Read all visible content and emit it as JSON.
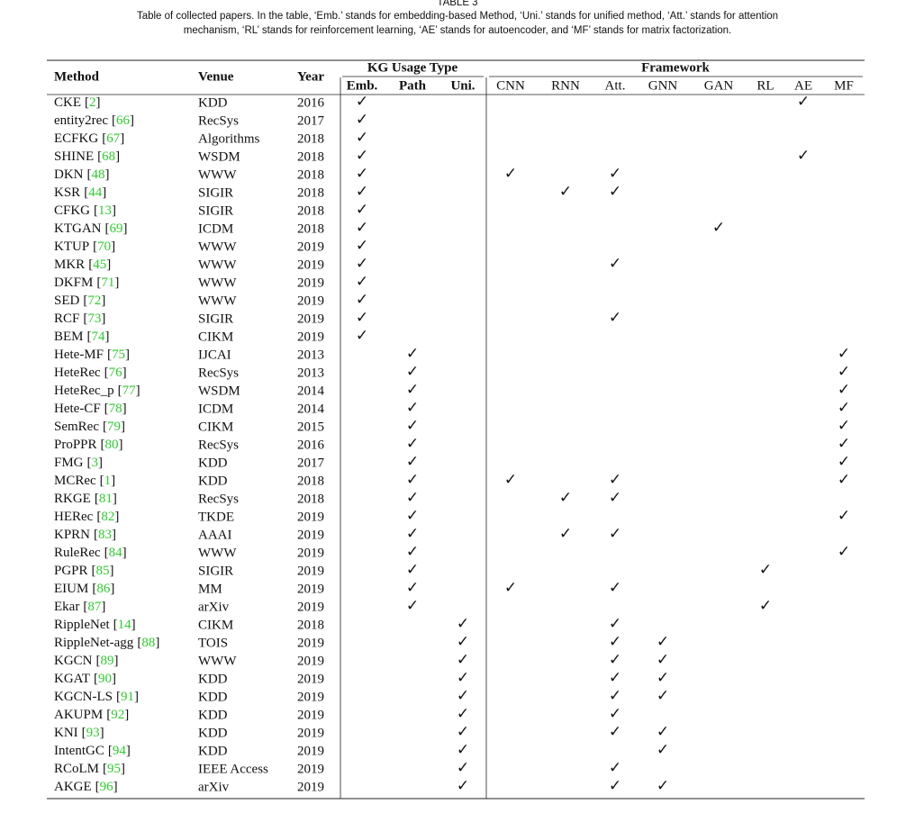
{
  "header": {
    "title": "TABLE 3",
    "caption": [
      "Table of collected papers. In the table, ‘Emb.’ stands for embedding-based Method, ‘Uni.’ stands for unified method, ‘Att.’ stands for attention",
      "mechanism, ‘RL’ stands for reinforcement learning, ‘AE’ stands for autoencoder, and ‘MF’ stands for matrix factorization."
    ]
  },
  "table": {
    "columns": {
      "method": "Method",
      "venue": "Venue",
      "year": "Year",
      "group1": "KG Usage Type",
      "group2": "Framework",
      "sub": [
        "Emb.",
        "Path",
        "Uni.",
        "CNN",
        "RNN",
        "Att.",
        "GNN",
        "GAN",
        "RL",
        "AE",
        "MF"
      ]
    },
    "rows": [
      {
        "method": "CKE",
        "ref": "[2]",
        "venue": "KDD",
        "year": 2016,
        "checks": [
          "✓",
          null,
          null,
          null,
          null,
          null,
          null,
          null,
          null,
          "✓",
          null
        ]
      },
      {
        "method": "entity2rec",
        "ref": "[66]",
        "venue": "RecSys",
        "year": 2017,
        "checks": [
          "✓",
          null,
          null,
          null,
          null,
          null,
          null,
          null,
          null,
          null,
          null
        ]
      },
      {
        "method": "ECFKG",
        "ref": "[67]",
        "venue": "Algorithms",
        "year": 2018,
        "checks": [
          "✓",
          null,
          null,
          null,
          null,
          null,
          null,
          null,
          null,
          null,
          null
        ]
      },
      {
        "method": "SHINE",
        "ref": "[68]",
        "venue": "WSDM",
        "year": 2018,
        "checks": [
          "✓",
          null,
          null,
          null,
          null,
          null,
          null,
          null,
          null,
          "✓",
          null
        ]
      },
      {
        "method": "DKN",
        "ref": "[48]",
        "venue": "WWW",
        "year": 2018,
        "checks": [
          "✓",
          null,
          null,
          "✓",
          null,
          "✓",
          null,
          null,
          null,
          null,
          null
        ]
      },
      {
        "method": "KSR",
        "ref": "[44]",
        "venue": "SIGIR",
        "year": 2018,
        "checks": [
          "✓",
          null,
          null,
          null,
          "✓",
          "✓",
          null,
          null,
          null,
          null,
          null
        ]
      },
      {
        "method": "CFKG",
        "ref": "[13]",
        "venue": "SIGIR",
        "year": 2018,
        "checks": [
          "✓",
          null,
          null,
          null,
          null,
          null,
          null,
          null,
          null,
          null,
          null
        ]
      },
      {
        "method": "KTGAN",
        "ref": "[69]",
        "venue": "ICDM",
        "year": 2018,
        "checks": [
          "✓",
          null,
          null,
          null,
          null,
          null,
          null,
          "✓",
          null,
          null,
          null
        ]
      },
      {
        "method": "KTUP",
        "ref": "[70]",
        "venue": "WWW",
        "year": 2019,
        "checks": [
          "✓",
          null,
          null,
          null,
          null,
          null,
          null,
          null,
          null,
          null,
          null
        ]
      },
      {
        "method": "MKR",
        "ref": "[45]",
        "venue": "WWW",
        "year": 2019,
        "checks": [
          "✓",
          null,
          null,
          null,
          null,
          "✓",
          null,
          null,
          null,
          null,
          null
        ]
      },
      {
        "method": "DKFM",
        "ref": "[71]",
        "venue": "WWW",
        "year": 2019,
        "checks": [
          "✓",
          null,
          null,
          null,
          null,
          null,
          null,
          null,
          null,
          null,
          null
        ]
      },
      {
        "method": "SED",
        "ref": "[72]",
        "venue": "WWW",
        "year": 2019,
        "checks": [
          "✓",
          null,
          null,
          null,
          null,
          null,
          null,
          null,
          null,
          null,
          null
        ]
      },
      {
        "method": "RCF",
        "ref": "[73]",
        "venue": "SIGIR",
        "year": 2019,
        "checks": [
          "✓",
          null,
          null,
          null,
          null,
          "✓",
          null,
          null,
          null,
          null,
          null
        ]
      },
      {
        "method": "BEM",
        "ref": "[74]",
        "venue": "CIKM",
        "year": 2019,
        "checks": [
          "✓",
          null,
          null,
          null,
          null,
          null,
          null,
          null,
          null,
          null,
          null
        ]
      },
      {
        "method": "Hete-MF",
        "ref": "[75]",
        "venue": "IJCAI",
        "year": 2013,
        "checks": [
          null,
          "✓",
          null,
          null,
          null,
          null,
          null,
          null,
          null,
          null,
          "✓"
        ]
      },
      {
        "method": "HeteRec",
        "ref": "[76]",
        "venue": "RecSys",
        "year": 2013,
        "checks": [
          null,
          "✓",
          null,
          null,
          null,
          null,
          null,
          null,
          null,
          null,
          "✓"
        ]
      },
      {
        "method": "HeteRec_p",
        "ref": "[77]",
        "venue": "WSDM",
        "year": 2014,
        "checks": [
          null,
          "✓",
          null,
          null,
          null,
          null,
          null,
          null,
          null,
          null,
          "✓"
        ]
      },
      {
        "method": "Hete-CF",
        "ref": "[78]",
        "venue": "ICDM",
        "year": 2014,
        "checks": [
          null,
          "✓",
          null,
          null,
          null,
          null,
          null,
          null,
          null,
          null,
          "✓"
        ]
      },
      {
        "method": "SemRec",
        "ref": "[79]",
        "venue": "CIKM",
        "year": 2015,
        "checks": [
          null,
          "✓",
          null,
          null,
          null,
          null,
          null,
          null,
          null,
          null,
          "✓"
        ]
      },
      {
        "method": "ProPPR",
        "ref": "[80]",
        "venue": "RecSys",
        "year": 2016,
        "checks": [
          null,
          "✓",
          null,
          null,
          null,
          null,
          null,
          null,
          null,
          null,
          "✓"
        ]
      },
      {
        "method": "FMG",
        "ref": "[3]",
        "venue": "KDD",
        "year": 2017,
        "checks": [
          null,
          "✓",
          null,
          null,
          null,
          null,
          null,
          null,
          null,
          null,
          "✓"
        ]
      },
      {
        "method": "MCRec",
        "ref": "[1]",
        "venue": "KDD",
        "year": 2018,
        "checks": [
          null,
          "✓",
          null,
          "✓",
          null,
          "✓",
          null,
          null,
          null,
          null,
          "✓"
        ]
      },
      {
        "method": "RKGE",
        "ref": "[81]",
        "venue": "RecSys",
        "year": 2018,
        "checks": [
          null,
          "✓",
          null,
          null,
          "✓",
          "✓",
          null,
          null,
          null,
          null,
          null
        ]
      },
      {
        "method": "HERec",
        "ref": "[82]",
        "venue": "TKDE",
        "year": 2019,
        "checks": [
          null,
          "✓",
          null,
          null,
          null,
          null,
          null,
          null,
          null,
          null,
          "✓"
        ]
      },
      {
        "method": "KPRN",
        "ref": "[83]",
        "venue": "AAAI",
        "year": 2019,
        "checks": [
          null,
          "✓",
          null,
          null,
          "✓",
          "✓",
          null,
          null,
          null,
          null,
          null
        ]
      },
      {
        "method": "RuleRec",
        "ref": "[84]",
        "venue": "WWW",
        "year": 2019,
        "checks": [
          null,
          "✓",
          null,
          null,
          null,
          null,
          null,
          null,
          null,
          null,
          "✓"
        ]
      },
      {
        "method": "PGPR",
        "ref": "[85]",
        "venue": "SIGIR",
        "year": 2019,
        "checks": [
          null,
          "✓",
          null,
          null,
          null,
          null,
          null,
          null,
          "✓",
          null,
          null
        ]
      },
      {
        "method": "EIUM",
        "ref": "[86]",
        "venue": "MM",
        "year": 2019,
        "checks": [
          null,
          "✓",
          null,
          "✓",
          null,
          "✓",
          null,
          null,
          null,
          null,
          null
        ]
      },
      {
        "method": "Ekar",
        "ref": "[87]",
        "venue": "arXiv",
        "year": 2019,
        "checks": [
          null,
          "✓",
          null,
          null,
          null,
          null,
          null,
          null,
          "✓",
          null,
          null
        ]
      },
      {
        "method": "RippleNet",
        "ref": "[14]",
        "venue": "CIKM",
        "year": 2018,
        "checks": [
          null,
          null,
          "✓",
          null,
          null,
          "✓",
          null,
          null,
          null,
          null,
          null
        ]
      },
      {
        "method": "RippleNet-agg",
        "ref": "[88]",
        "venue": "TOIS",
        "year": 2019,
        "checks": [
          null,
          null,
          "✓",
          null,
          null,
          "✓",
          "✓",
          null,
          null,
          null,
          null
        ]
      },
      {
        "method": "KGCN",
        "ref": "[89]",
        "venue": "WWW",
        "year": 2019,
        "checks": [
          null,
          null,
          "✓",
          null,
          null,
          "✓",
          "✓",
          null,
          null,
          null,
          null
        ]
      },
      {
        "method": "KGAT",
        "ref": "[90]",
        "venue": "KDD",
        "year": 2019,
        "checks": [
          null,
          null,
          "✓",
          null,
          null,
          "✓",
          "✓",
          null,
          null,
          null,
          null
        ]
      },
      {
        "method": "KGCN-LS",
        "ref": "[91]",
        "venue": "KDD",
        "year": 2019,
        "checks": [
          null,
          null,
          "✓",
          null,
          null,
          "✓",
          "✓",
          null,
          null,
          null,
          null
        ]
      },
      {
        "method": "AKUPM",
        "ref": "[92]",
        "venue": "KDD",
        "year": 2019,
        "checks": [
          null,
          null,
          "✓",
          null,
          null,
          "✓",
          null,
          null,
          null,
          null,
          null
        ]
      },
      {
        "method": "KNI",
        "ref": "[93]",
        "venue": "KDD",
        "year": 2019,
        "checks": [
          null,
          null,
          "✓",
          null,
          null,
          "✓",
          "✓",
          null,
          null,
          null,
          null
        ]
      },
      {
        "method": "IntentGC",
        "ref": "[94]",
        "venue": "KDD",
        "year": 2019,
        "checks": [
          null,
          null,
          "✓",
          null,
          null,
          null,
          "✓",
          null,
          null,
          null,
          null
        ]
      },
      {
        "method": "RCoLM",
        "ref": "[95]",
        "venue": "IEEE Access",
        "year": 2019,
        "checks": [
          null,
          null,
          "✓",
          null,
          null,
          "✓",
          null,
          null,
          null,
          null,
          null
        ]
      },
      {
        "method": "AKGE",
        "ref": "[96]",
        "venue": "arXiv",
        "year": 2019,
        "checks": [
          null,
          null,
          "✓",
          null,
          null,
          "✓",
          "✓",
          null,
          null,
          null,
          null
        ]
      }
    ]
  }
}
